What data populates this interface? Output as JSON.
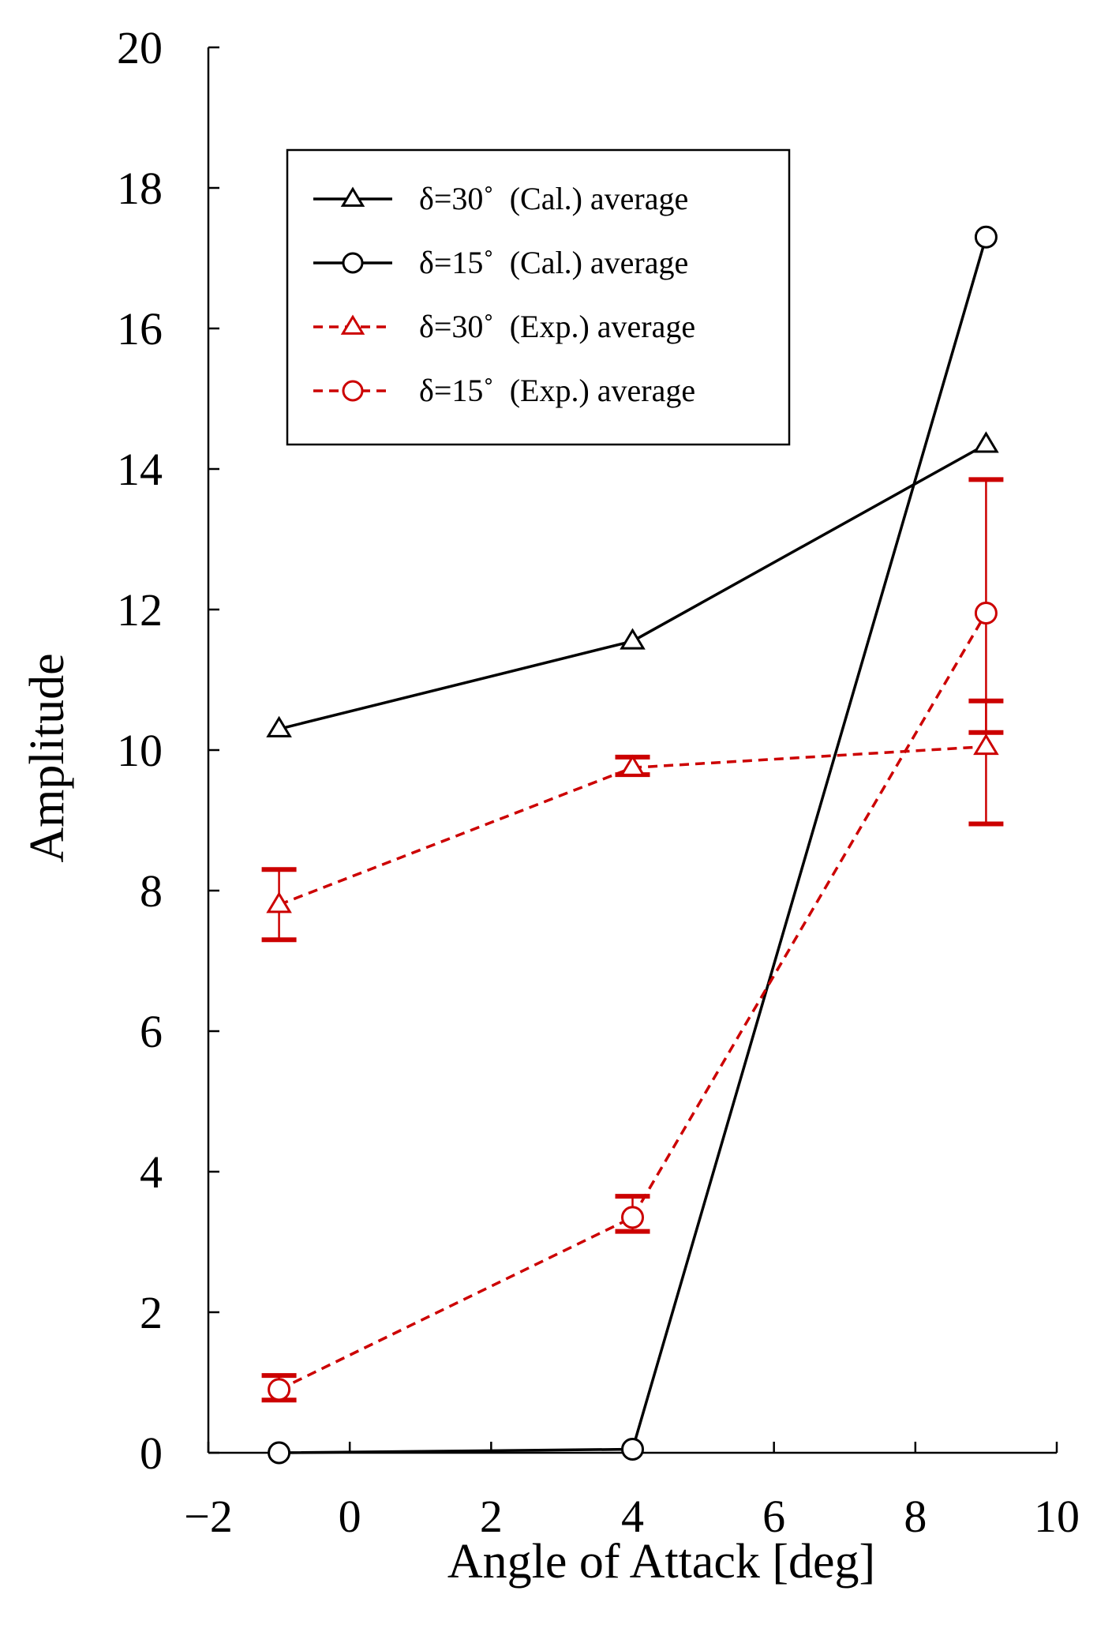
{
  "chart_data": {
    "type": "line",
    "xlabel": "Angle of Attack [deg]",
    "ylabel": "Amplitude",
    "xlim": [
      -2,
      10
    ],
    "ylim": [
      0,
      20
    ],
    "xticks": [
      -2,
      0,
      2,
      4,
      6,
      8,
      10
    ],
    "yticks": [
      0,
      2,
      4,
      6,
      8,
      10,
      12,
      14,
      16,
      18,
      20
    ],
    "xtick_labels": [
      "−2",
      "0",
      "2",
      "4",
      "6",
      "8",
      "10"
    ],
    "ytick_labels": [
      "0",
      "2",
      "4",
      "6",
      "8",
      "10",
      "12",
      "14",
      "16",
      "18",
      "20"
    ],
    "legend_position": "upper-left",
    "series": [
      {
        "name": "δ=30˚  (Cal.) average",
        "marker": "triangle",
        "style": "solid",
        "color": "#000000",
        "x": [
          -1,
          4,
          9
        ],
        "y": [
          10.3,
          11.55,
          14.35
        ]
      },
      {
        "name": "δ=15˚  (Cal.) average",
        "marker": "circle",
        "style": "solid",
        "color": "#000000",
        "x": [
          -1,
          4,
          9
        ],
        "y": [
          0.0,
          0.05,
          17.3
        ]
      },
      {
        "name": "δ=30˚  (Exp.) average",
        "marker": "triangle",
        "style": "dashed",
        "color": "#cc0000",
        "x": [
          -1,
          4,
          9
        ],
        "y": [
          7.8,
          9.75,
          10.05
        ],
        "err_low": [
          7.3,
          9.65,
          8.95
        ],
        "err_high": [
          8.3,
          9.9,
          10.7
        ]
      },
      {
        "name": "δ=15˚  (Exp.) average",
        "marker": "circle",
        "style": "dashed",
        "color": "#cc0000",
        "x": [
          -1,
          4,
          9
        ],
        "y": [
          0.9,
          3.35,
          11.95
        ],
        "err_low": [
          0.75,
          3.15,
          10.25
        ],
        "err_high": [
          1.1,
          3.65,
          13.85
        ]
      }
    ]
  }
}
